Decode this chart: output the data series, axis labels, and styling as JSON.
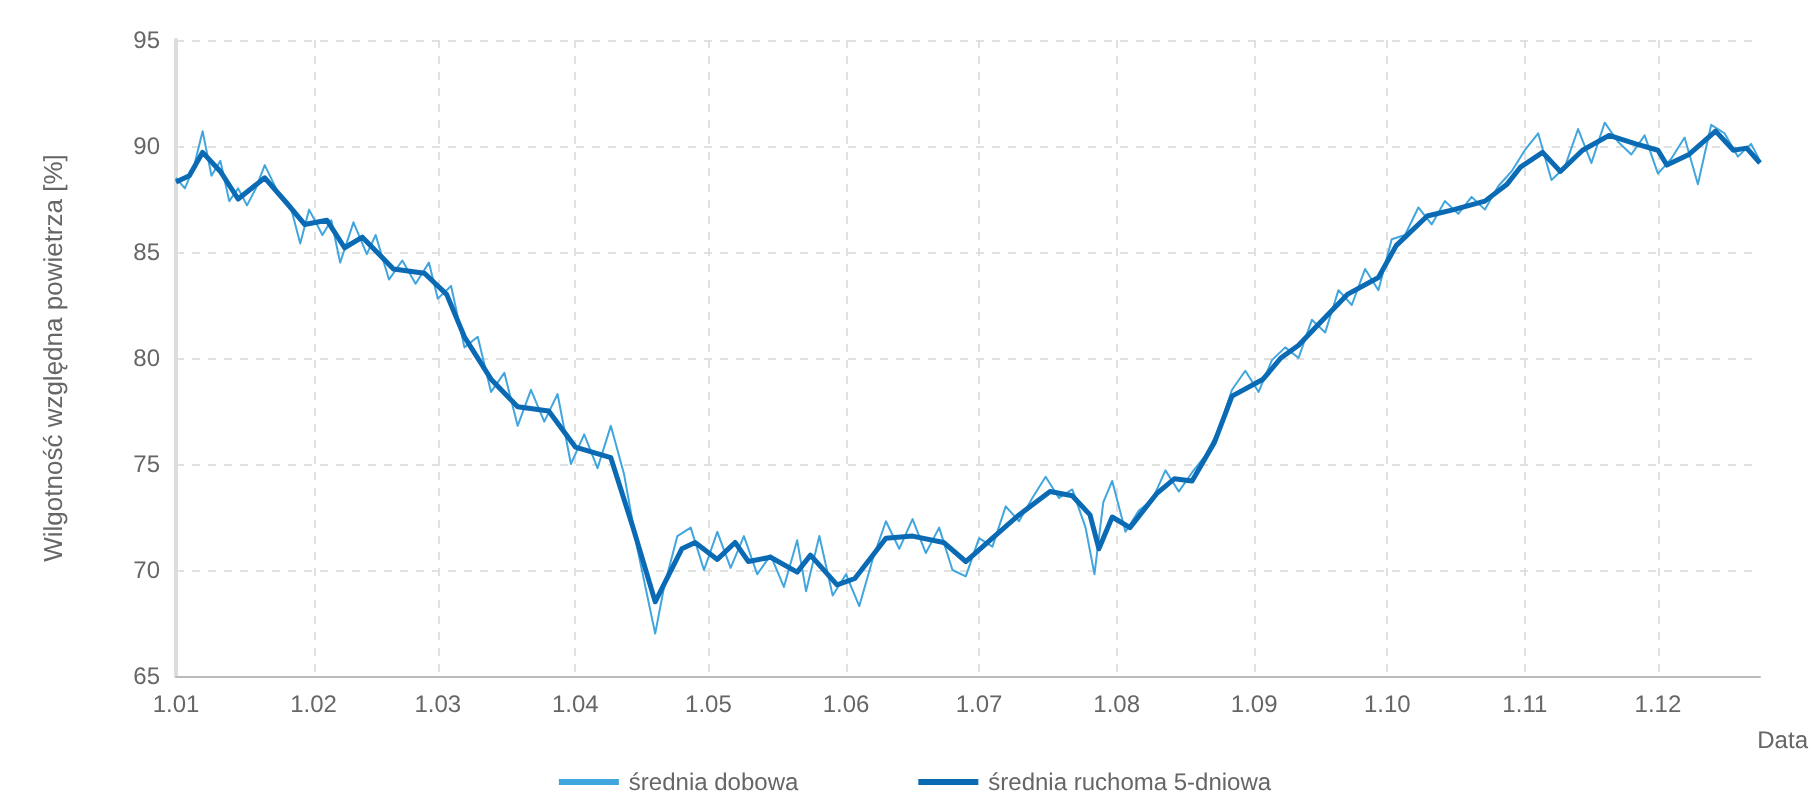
{
  "chart_data": {
    "type": "line",
    "xlabel": "Data",
    "ylabel": "Wilgotność względna powietrza [%]",
    "ylim": [
      65,
      95
    ],
    "yticks": [
      65,
      70,
      75,
      80,
      85,
      90,
      95
    ],
    "xlim": [
      "--01-01",
      "--12-24"
    ],
    "xticks": [
      {
        "value": "--01-01",
        "label": "1.01"
      },
      {
        "value": "--02-01",
        "label": "1.02"
      },
      {
        "value": "--03-01",
        "label": "1.03"
      },
      {
        "value": "--04-01",
        "label": "1.04"
      },
      {
        "value": "--05-01",
        "label": "1.05"
      },
      {
        "value": "--06-01",
        "label": "1.06"
      },
      {
        "value": "--07-01",
        "label": "1.07"
      },
      {
        "value": "--08-01",
        "label": "1.08"
      },
      {
        "value": "--09-01",
        "label": "1.09"
      },
      {
        "value": "--10-01",
        "label": "1.10"
      },
      {
        "value": "--11-01",
        "label": "1.11"
      },
      {
        "value": "--12-01",
        "label": "1.12"
      }
    ],
    "grid": true,
    "legend": "bottom",
    "marker": "none",
    "line_style": "solid",
    "series": [
      {
        "name": "średnia dobowa",
        "color": "#41a5de",
        "x": [
          "--01-01",
          "--01-03",
          "--01-05",
          "--01-07",
          "--01-09",
          "--01-11",
          "--01-13",
          "--01-15",
          "--01-17",
          "--01-19",
          "--01-21",
          "--01-24",
          "--01-27",
          "--01-29",
          "--01-31",
          "--02-03",
          "--02-05",
          "--02-07",
          "--02-10",
          "--02-13",
          "--02-15",
          "--02-18",
          "--02-21",
          "--02-24",
          "--02-27",
          "--03-01",
          "--03-04",
          "--03-07",
          "--03-10",
          "--03-13",
          "--03-16",
          "--03-19",
          "--03-22",
          "--03-25",
          "--03-28",
          "--03-31",
          "--04-03",
          "--04-06",
          "--04-09",
          "--04-12",
          "--04-15",
          "--04-17",
          "--04-19",
          "--04-21",
          "--04-24",
          "--04-27",
          "--04-30",
          "--05-03",
          "--05-06",
          "--05-09",
          "--05-12",
          "--05-15",
          "--05-18",
          "--05-21",
          "--05-23",
          "--05-26",
          "--05-29",
          "--06-01",
          "--06-04",
          "--06-07",
          "--06-10",
          "--06-13",
          "--06-16",
          "--06-19",
          "--06-22",
          "--06-25",
          "--06-28",
          "--07-01",
          "--07-04",
          "--07-07",
          "--07-10",
          "--07-13",
          "--07-16",
          "--07-19",
          "--07-22",
          "--07-25",
          "--07-27",
          "--07-29",
          "--07-31",
          "--08-03",
          "--08-06",
          "--08-09",
          "--08-12",
          "--08-15",
          "--08-18",
          "--08-21",
          "--08-24",
          "--08-27",
          "--08-30",
          "--09-02",
          "--09-05",
          "--09-08",
          "--09-11",
          "--09-14",
          "--09-17",
          "--09-20",
          "--09-23",
          "--09-26",
          "--09-29",
          "--10-02",
          "--10-05",
          "--10-08",
          "--10-11",
          "--10-14",
          "--10-17",
          "--10-20",
          "--10-23",
          "--10-26",
          "--10-29",
          "--11-01",
          "--11-04",
          "--11-07",
          "--11-10",
          "--11-13",
          "--11-16",
          "--11-19",
          "--11-22",
          "--11-25",
          "--11-28",
          "--12-01",
          "--12-04",
          "--12-07",
          "--12-10",
          "--12-13",
          "--12-16",
          "--12-19",
          "--12-22",
          "--12-24"
        ],
        "values": [
          88.5,
          88.0,
          89.0,
          90.7,
          88.6,
          89.3,
          87.4,
          88.0,
          87.2,
          88.0,
          89.1,
          87.8,
          87.0,
          85.4,
          87.0,
          85.8,
          86.5,
          84.5,
          86.4,
          84.9,
          85.8,
          83.7,
          84.6,
          83.5,
          84.5,
          82.8,
          83.4,
          80.5,
          81.0,
          78.4,
          79.3,
          76.8,
          78.5,
          77.0,
          78.3,
          75.0,
          76.4,
          74.8,
          76.8,
          74.5,
          71.0,
          69.0,
          67.0,
          69.2,
          71.6,
          72.0,
          70.0,
          71.8,
          70.1,
          71.6,
          69.8,
          70.7,
          69.2,
          71.4,
          69.0,
          71.6,
          68.8,
          69.8,
          68.3,
          70.5,
          72.3,
          71.0,
          72.4,
          70.8,
          72.0,
          70.0,
          69.7,
          71.5,
          71.1,
          73.0,
          72.3,
          73.4,
          74.4,
          73.4,
          73.8,
          72.0,
          69.8,
          73.2,
          74.2,
          71.8,
          72.8,
          73.3,
          74.7,
          73.7,
          74.6,
          75.4,
          76.6,
          78.5,
          79.4,
          78.4,
          79.9,
          80.5,
          80.0,
          81.8,
          81.2,
          83.2,
          82.5,
          84.2,
          83.2,
          85.6,
          85.8,
          87.1,
          86.3,
          87.4,
          86.8,
          87.6,
          87.0,
          88.1,
          88.8,
          89.8,
          90.6,
          88.4,
          89.0,
          90.8,
          89.2,
          91.1,
          90.2,
          89.6,
          90.5,
          88.7,
          89.4,
          90.4,
          88.2,
          91.0,
          90.6,
          89.5,
          90.1,
          89.3
        ]
      },
      {
        "name": "średnia ruchoma 5-dniowa",
        "color": "#0a6ab4",
        "x": [
          "--01-01",
          "--01-04",
          "--01-07",
          "--01-11",
          "--01-15",
          "--01-21",
          "--01-26",
          "--01-30",
          "--02-04",
          "--02-08",
          "--02-12",
          "--02-19",
          "--02-26",
          "--03-03",
          "--03-07",
          "--03-13",
          "--03-19",
          "--03-26",
          "--04-01",
          "--04-09",
          "--04-14",
          "--04-19",
          "--04-25",
          "--04-28",
          "--05-03",
          "--05-07",
          "--05-10",
          "--05-15",
          "--05-21",
          "--05-24",
          "--05-30",
          "--06-03",
          "--06-10",
          "--06-16",
          "--06-23",
          "--06-28",
          "--07-04",
          "--07-10",
          "--07-17",
          "--07-22",
          "--07-26",
          "--07-28",
          "--07-31",
          "--08-04",
          "--08-10",
          "--08-14",
          "--08-18",
          "--08-23",
          "--08-27",
          "--09-03",
          "--09-07",
          "--09-11",
          "--09-16",
          "--09-22",
          "--09-29",
          "--10-03",
          "--10-10",
          "--10-16",
          "--10-23",
          "--10-28",
          "--10-31",
          "--11-05",
          "--11-09",
          "--11-14",
          "--11-20",
          "--11-26",
          "--12-01",
          "--12-03",
          "--12-08",
          "--12-14",
          "--12-18",
          "--12-21",
          "--12-24"
        ],
        "values": [
          88.3,
          88.6,
          89.7,
          88.8,
          87.5,
          88.5,
          87.3,
          86.3,
          86.5,
          85.2,
          85.7,
          84.2,
          84.0,
          83.0,
          81.0,
          79.0,
          77.7,
          77.5,
          75.8,
          75.3,
          72.0,
          68.5,
          71.0,
          71.3,
          70.5,
          71.3,
          70.4,
          70.6,
          69.9,
          70.7,
          69.3,
          69.6,
          71.5,
          71.6,
          71.3,
          70.4,
          71.5,
          72.6,
          73.7,
          73.5,
          72.6,
          71.0,
          72.5,
          72.0,
          73.6,
          74.3,
          74.2,
          76.0,
          78.2,
          79.0,
          80.0,
          80.6,
          81.7,
          83.0,
          83.8,
          85.3,
          86.7,
          87.0,
          87.4,
          88.2,
          89.0,
          89.7,
          88.8,
          89.8,
          90.5,
          90.1,
          89.8,
          89.1,
          89.6,
          90.7,
          89.8,
          89.9,
          89.2
        ]
      }
    ]
  }
}
